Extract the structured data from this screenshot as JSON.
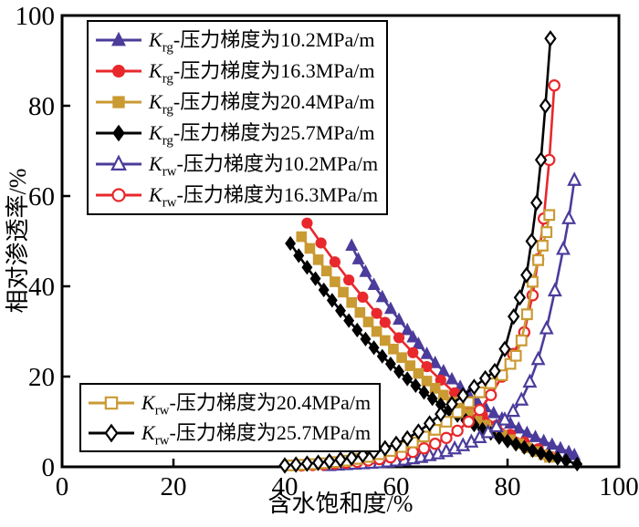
{
  "figure": {
    "background": "#ffffff"
  },
  "chart_data": {
    "type": "line",
    "title": "",
    "xlabel": "含水饱和度/%",
    "ylabel": "相对渗透率/%",
    "xlim": [
      0,
      100
    ],
    "ylim": [
      0,
      100
    ],
    "x_ticks": [
      0,
      20,
      40,
      60,
      80,
      100
    ],
    "y_ticks": [
      0,
      20,
      40,
      60,
      80,
      100
    ],
    "grid": false,
    "legend_position": "two boxes: upper-left (6 items), lower-left (2 items)",
    "axis_color": "#000000",
    "series": [
      {
        "name": "Krg-压力梯度为10.2MPa/m",
        "symbol": "K",
        "symbol_sub": "rg",
        "label_text": "-压力梯度为10.2MPa/m",
        "color": "#4b3c9b",
        "marker": "triangle",
        "filled": true,
        "points": [
          [
            52,
            49
          ],
          [
            53.2,
            46
          ],
          [
            54.5,
            43.2
          ],
          [
            56,
            40.3
          ],
          [
            57.5,
            37.6
          ],
          [
            59,
            35
          ],
          [
            60.5,
            32.6
          ],
          [
            62,
            30.3
          ],
          [
            63,
            28.7
          ],
          [
            64,
            27.2
          ],
          [
            65.5,
            25
          ],
          [
            67,
            23
          ],
          [
            68.5,
            21.2
          ],
          [
            70,
            19.4
          ],
          [
            71.5,
            17.7
          ],
          [
            73,
            16.1
          ],
          [
            74.5,
            14.6
          ],
          [
            76,
            13.2
          ],
          [
            77.5,
            11.9
          ],
          [
            79,
            10.7
          ],
          [
            80.5,
            9.6
          ],
          [
            82,
            8.5
          ],
          [
            83.5,
            7.5
          ],
          [
            85,
            6.6
          ],
          [
            86.5,
            5.7
          ],
          [
            88,
            4.9
          ],
          [
            89.5,
            4.1
          ],
          [
            91,
            3.3
          ],
          [
            92,
            2.6
          ]
        ]
      },
      {
        "name": "Krg-压力梯度为16.3MPa/m",
        "symbol": "K",
        "symbol_sub": "rg",
        "label_text": "-压力梯度为16.3MPa/m",
        "color": "#e8282c",
        "marker": "circle",
        "filled": true,
        "points": [
          [
            44,
            54
          ],
          [
            46.5,
            49.6
          ],
          [
            49,
            45.4
          ],
          [
            51.5,
            41.4
          ],
          [
            54,
            37.6
          ],
          [
            56.5,
            34
          ],
          [
            58,
            32
          ],
          [
            60.5,
            28.6
          ],
          [
            63,
            25.3
          ],
          [
            65.5,
            22.2
          ],
          [
            68,
            19.2
          ],
          [
            70.5,
            16.4
          ],
          [
            73,
            13.8
          ],
          [
            75.5,
            11.4
          ],
          [
            78,
            9.2
          ],
          [
            80.5,
            7.2
          ],
          [
            83,
            5.5
          ],
          [
            85.5,
            4
          ],
          [
            88,
            2.2
          ]
        ]
      },
      {
        "name": "Krg-压力梯度为20.4MPa/m",
        "symbol": "K",
        "symbol_sub": "rg",
        "label_text": "-压力梯度为20.4MPa/m",
        "color": "#ca9a33",
        "marker": "square",
        "filled": true,
        "points": [
          [
            43,
            51
          ],
          [
            44.5,
            48.4
          ],
          [
            46,
            45.9
          ],
          [
            47.5,
            43.4
          ],
          [
            49,
            41
          ],
          [
            50.5,
            38.7
          ],
          [
            52,
            36.4
          ],
          [
            53.5,
            34.2
          ],
          [
            55,
            32.1
          ],
          [
            56.5,
            30
          ],
          [
            58,
            28
          ],
          [
            59.5,
            26.1
          ],
          [
            61,
            24.2
          ],
          [
            62.5,
            22.4
          ],
          [
            64,
            20.7
          ],
          [
            65.5,
            19
          ],
          [
            67,
            17.4
          ],
          [
            68.5,
            15.9
          ],
          [
            70,
            14.4
          ],
          [
            71.5,
            13
          ],
          [
            73,
            11.7
          ],
          [
            74.5,
            10.4
          ],
          [
            76,
            9.2
          ],
          [
            77.5,
            8.1
          ],
          [
            79,
            7
          ],
          [
            80.5,
            6
          ],
          [
            82,
            5.1
          ],
          [
            83.5,
            4.2
          ],
          [
            85,
            3.4
          ],
          [
            86.5,
            2.7
          ],
          [
            87.5,
            2.1
          ]
        ]
      },
      {
        "name": "Krg-压力梯度为25.7MPa/m",
        "symbol": "K",
        "symbol_sub": "rg",
        "label_text": "-压力梯度为25.7MPa/m",
        "color": "#000000",
        "marker": "diamond",
        "filled": true,
        "points": [
          [
            41,
            49.5
          ],
          [
            42.5,
            46.8
          ],
          [
            44,
            44.2
          ],
          [
            45.5,
            41.7
          ],
          [
            47,
            39.2
          ],
          [
            48.5,
            36.9
          ],
          [
            50,
            34.6
          ],
          [
            51.5,
            32.4
          ],
          [
            53,
            30.3
          ],
          [
            54.5,
            28.3
          ],
          [
            56,
            26.4
          ],
          [
            57.5,
            24.5
          ],
          [
            59,
            22.8
          ],
          [
            60.5,
            21.1
          ],
          [
            62,
            19.5
          ],
          [
            63.5,
            18
          ],
          [
            65,
            16.5
          ],
          [
            66.5,
            15.1
          ],
          [
            68,
            13.8
          ],
          [
            69.5,
            12.6
          ],
          [
            71,
            11.4
          ],
          [
            72.5,
            10.3
          ],
          [
            74,
            9.3
          ],
          [
            75.5,
            8.3
          ],
          [
            77,
            7.4
          ],
          [
            78.5,
            6.5
          ],
          [
            80,
            5.7
          ],
          [
            81.5,
            5
          ],
          [
            83,
            4.3
          ],
          [
            84.5,
            3.6
          ],
          [
            86,
            3
          ],
          [
            87.5,
            2.4
          ],
          [
            89,
            1.9
          ],
          [
            90.5,
            1.4
          ],
          [
            92.5,
            0.6
          ]
        ]
      },
      {
        "name": "Krw-压力梯度为10.2MPa/m",
        "symbol": "K",
        "symbol_sub": "rw",
        "label_text": "-压力梯度为10.2MPa/m",
        "color": "#4b3c9b",
        "marker": "triangle",
        "filled": false,
        "points": [
          [
            48,
            0.3
          ],
          [
            49.5,
            0.4
          ],
          [
            51,
            0.5
          ],
          [
            52.5,
            0.6
          ],
          [
            54,
            0.7
          ],
          [
            55.5,
            0.8
          ],
          [
            57,
            0.9
          ],
          [
            58.5,
            1.1
          ],
          [
            60,
            1.3
          ],
          [
            61.5,
            1.5
          ],
          [
            63,
            1.8
          ],
          [
            64.5,
            2.1
          ],
          [
            66,
            2.5
          ],
          [
            67.5,
            2.9
          ],
          [
            69,
            3.4
          ],
          [
            70.5,
            4
          ],
          [
            72,
            4.7
          ],
          [
            73.5,
            5.5
          ],
          [
            75,
            6.5
          ],
          [
            76.5,
            7.6
          ],
          [
            78,
            8.9
          ],
          [
            79.5,
            10.4
          ],
          [
            81,
            12.3
          ],
          [
            82.5,
            14.8
          ],
          [
            84,
            18.8
          ],
          [
            85.5,
            23.8
          ],
          [
            87,
            30.6
          ],
          [
            88.5,
            39
          ],
          [
            90,
            48.2
          ],
          [
            91,
            55
          ],
          [
            92,
            63.5
          ]
        ]
      },
      {
        "name": "Krw-压力梯度为16.3MPa/m",
        "symbol": "K",
        "symbol_sub": "rw",
        "label_text": "-压力梯度为16.3MPa/m",
        "color": "#e8282c",
        "marker": "circle",
        "filled": false,
        "points": [
          [
            43,
            0.3
          ],
          [
            45,
            0.4
          ],
          [
            47,
            0.5
          ],
          [
            49,
            0.7
          ],
          [
            51,
            0.9
          ],
          [
            53,
            1.1
          ],
          [
            55,
            1.4
          ],
          [
            57,
            1.7
          ],
          [
            59,
            2.1
          ],
          [
            61,
            2.7
          ],
          [
            63,
            3.3
          ],
          [
            65,
            4.1
          ],
          [
            67,
            5.1
          ],
          [
            69,
            6.4
          ],
          [
            71,
            8
          ],
          [
            73,
            10
          ],
          [
            75,
            12.6
          ],
          [
            77,
            15.9
          ],
          [
            79,
            20
          ],
          [
            81,
            25
          ],
          [
            83,
            29.8
          ],
          [
            84.5,
            38
          ],
          [
            85.5,
            46
          ],
          [
            86.5,
            55
          ],
          [
            87.5,
            68
          ],
          [
            88.4,
            84.5
          ]
        ]
      },
      {
        "name": "Krw-压力梯度为20.4MPa/m",
        "symbol": "K",
        "symbol_sub": "rw",
        "label_text": "-压力梯度为20.4MPa/m",
        "color": "#ca9a33",
        "marker": "square",
        "filled": false,
        "points": [
          [
            41,
            0.3
          ],
          [
            43,
            0.45
          ],
          [
            45,
            0.6
          ],
          [
            47,
            0.8
          ],
          [
            49,
            1.05
          ],
          [
            51,
            1.35
          ],
          [
            53,
            1.75
          ],
          [
            55,
            2.2
          ],
          [
            57,
            2.8
          ],
          [
            59,
            3.5
          ],
          [
            61,
            4.4
          ],
          [
            63,
            5.4
          ],
          [
            65,
            6.7
          ],
          [
            67,
            8.2
          ],
          [
            69,
            10
          ],
          [
            71,
            12.1
          ],
          [
            73,
            14.3
          ],
          [
            75,
            16.5
          ],
          [
            77,
            18.5
          ],
          [
            79,
            20.3
          ],
          [
            80.5,
            22.8
          ],
          [
            81.5,
            24.6
          ],
          [
            82.5,
            28
          ],
          [
            83.5,
            33.8
          ],
          [
            84.5,
            41
          ],
          [
            85.5,
            45.8
          ],
          [
            86.3,
            49
          ],
          [
            87,
            52
          ],
          [
            87.5,
            55.8
          ]
        ]
      },
      {
        "name": "Krw-压力梯度为25.7MPa/m",
        "symbol": "K",
        "symbol_sub": "rw",
        "label_text": "-压力梯度为25.7MPa/m",
        "color": "#000000",
        "marker": "diamond",
        "filled": false,
        "points": [
          [
            40,
            0.3
          ],
          [
            42,
            0.5
          ],
          [
            44,
            0.7
          ],
          [
            46,
            0.9
          ],
          [
            48,
            1.2
          ],
          [
            50,
            1.6
          ],
          [
            52,
            2
          ],
          [
            54,
            2.6
          ],
          [
            56,
            3.3
          ],
          [
            58,
            4.1
          ],
          [
            60,
            5.1
          ],
          [
            62,
            6.3
          ],
          [
            64,
            7.8
          ],
          [
            66,
            9.6
          ],
          [
            68,
            11.7
          ],
          [
            70,
            13.9
          ],
          [
            72,
            15.8
          ],
          [
            74,
            17.7
          ],
          [
            76,
            19.6
          ],
          [
            77.7,
            21.2
          ],
          [
            79.5,
            26.1
          ],
          [
            81.1,
            33.3
          ],
          [
            82.2,
            37.5
          ],
          [
            83.4,
            42.5
          ],
          [
            84.3,
            50
          ],
          [
            85.2,
            58.5
          ],
          [
            86,
            68
          ],
          [
            86.8,
            80
          ],
          [
            87.7,
            94.9
          ]
        ]
      }
    ]
  }
}
